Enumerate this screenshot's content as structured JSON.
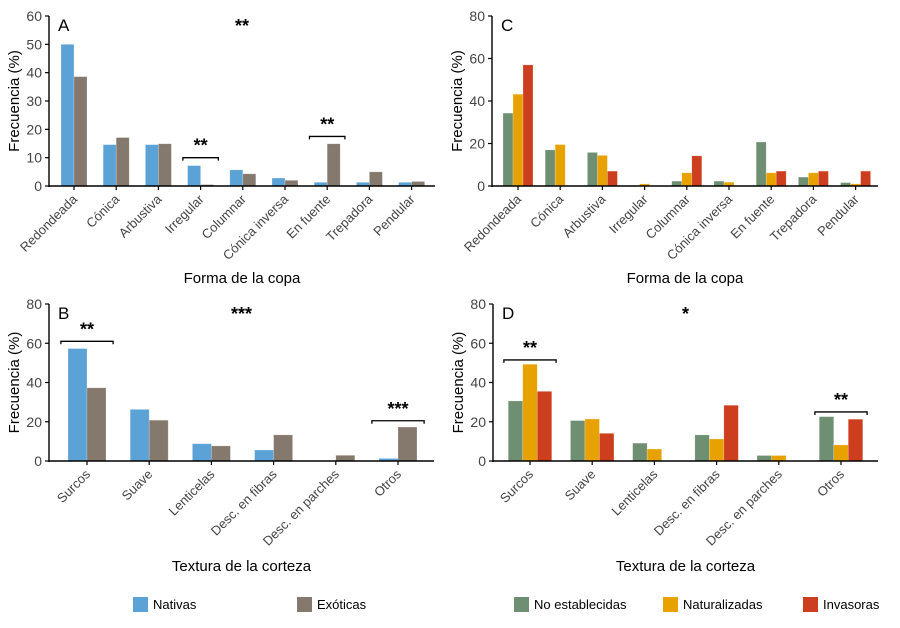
{
  "chart_data": [
    {
      "type": "bar",
      "panel": "A",
      "ylabel": "Frecuencia (%)",
      "xlabel": "Forma de la copa",
      "ylim": [
        0,
        60
      ],
      "yticks": [
        0,
        10,
        20,
        30,
        40,
        50,
        60
      ],
      "categories": [
        "Redondeada",
        "Cónica",
        "Arbustiva",
        "Irregular",
        "Columnar",
        "Cónica inversa",
        "En fuente",
        "Trepadora",
        "Pendular"
      ],
      "series": [
        {
          "name": "Nativas",
          "color": "#5ba3d6",
          "values": [
            50,
            14.6,
            14.6,
            7.2,
            5.7,
            2.8,
            1.3,
            1.3,
            1.3
          ]
        },
        {
          "name": "Exóticas",
          "color": "#85796d",
          "values": [
            38.6,
            17.1,
            14.9,
            0.5,
            4.3,
            2.0,
            14.9,
            5.0,
            1.6
          ]
        }
      ],
      "overall_significance": "**",
      "brackets": [
        {
          "category": "Irregular",
          "label": "**",
          "y": 10
        },
        {
          "category": "En fuente",
          "label": "**",
          "y": 17.5
        }
      ]
    },
    {
      "type": "bar",
      "panel": "C",
      "ylabel": "Frecuencia (%)",
      "xlabel": "Forma de la copa",
      "ylim": [
        0,
        80
      ],
      "yticks": [
        0,
        20,
        40,
        60,
        80
      ],
      "categories": [
        "Redondeada",
        "Cónica",
        "Arbustiva",
        "Irregular",
        "Columnar",
        "Cónica inversa",
        "En fuente",
        "Trepadora",
        "Pendular"
      ],
      "series": [
        {
          "name": "No establecidas",
          "color": "#6e8f72",
          "values": [
            34.3,
            17.0,
            15.8,
            0.3,
            2.3,
            2.3,
            20.7,
            4.2,
            1.6
          ]
        },
        {
          "name": "Naturalizadas",
          "color": "#e8a200",
          "values": [
            43.2,
            19.5,
            14.4,
            1.0,
            6.2,
            1.8,
            6.2,
            6.2,
            1.0
          ]
        },
        {
          "name": "Invasoras",
          "color": "#cc3e1e",
          "values": [
            57.0,
            0,
            7.0,
            0,
            14.2,
            0,
            7.0,
            7.0,
            7.0
          ]
        }
      ],
      "overall_significance": "",
      "brackets": []
    },
    {
      "type": "bar",
      "panel": "B",
      "ylabel": "Frecuencia (%)",
      "xlabel": "Textura de la corteza",
      "ylim": [
        0,
        80
      ],
      "yticks": [
        0,
        20,
        40,
        60,
        80
      ],
      "categories": [
        "Surcos",
        "Suave",
        "Lenticelas",
        "Desc. en fibras",
        "Desc. en parches",
        "Otros"
      ],
      "series": [
        {
          "name": "Nativas",
          "color": "#5ba3d6",
          "values": [
            57.3,
            26.3,
            8.8,
            5.6,
            0,
            1.3
          ]
        },
        {
          "name": "Exóticas",
          "color": "#85796d",
          "values": [
            37.3,
            20.8,
            7.7,
            13.3,
            2.9,
            17.3
          ]
        }
      ],
      "overall_significance": "***",
      "brackets": [
        {
          "category": "Surcos",
          "label": "**",
          "y": 61
        },
        {
          "category": "Otros",
          "label": "***",
          "y": 20.5
        }
      ]
    },
    {
      "type": "bar",
      "panel": "D",
      "ylabel": "Frecuencia (%)",
      "xlabel": "Textura de la corteza",
      "ylim": [
        0,
        80
      ],
      "yticks": [
        0,
        20,
        40,
        60,
        80
      ],
      "categories": [
        "Surcos",
        "Suave",
        "Lenticelas",
        "Desc. en fibras",
        "Desc. en parches",
        "Otros"
      ],
      "series": [
        {
          "name": "No establecidas",
          "color": "#6e8f72",
          "values": [
            30.6,
            20.6,
            9.1,
            13.3,
            2.8,
            22.6
          ]
        },
        {
          "name": "Naturalizadas",
          "color": "#e8a200",
          "values": [
            49.3,
            21.4,
            6.1,
            11.2,
            2.8,
            8.2
          ]
        },
        {
          "name": "Invasoras",
          "color": "#cc3e1e",
          "values": [
            35.5,
            14.1,
            0,
            28.4,
            0,
            21.3
          ]
        }
      ],
      "overall_significance": "*",
      "brackets": [
        {
          "category": "Surcos",
          "label": "**",
          "y": 51.5
        },
        {
          "category": "Otros",
          "label": "**",
          "y": 25
        }
      ]
    }
  ],
  "legends": [
    {
      "items": [
        {
          "label": "Nativas",
          "color": "#5ba3d6"
        },
        {
          "label": "Exóticas",
          "color": "#85796d"
        }
      ]
    },
    {
      "items": [
        {
          "label": "No establecidas",
          "color": "#6e8f72"
        },
        {
          "label": "Naturalizadas",
          "color": "#e8a200"
        },
        {
          "label": "Invasoras",
          "color": "#cc3e1e"
        }
      ]
    }
  ]
}
